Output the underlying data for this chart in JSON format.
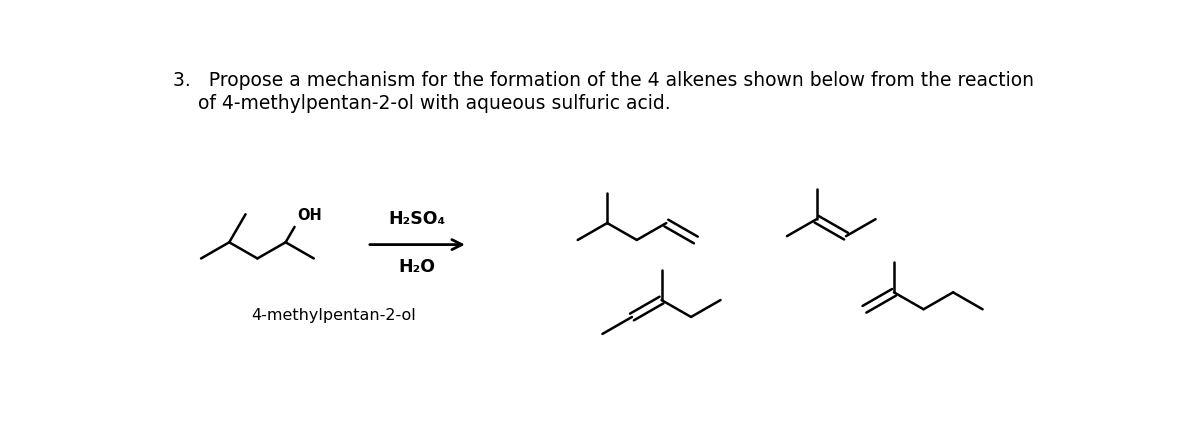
{
  "title_line1": "3.   Propose a mechanism for the formation of the 4 alkenes shown below from the reaction",
  "title_line2": "of 4-methylpentan-2-ol with aqueous sulfuric acid.",
  "reagent_above": "H₂SO₄",
  "reagent_below": "H₂O",
  "label_reactant": "4-methylpentan-2-ol",
  "bg_color": "#ffffff",
  "line_color": "#000000",
  "text_color": "#000000",
  "font_size_title": 13.5,
  "font_size_label": 11.5,
  "font_size_reagent": 12.5,
  "font_size_oh": 10.5
}
